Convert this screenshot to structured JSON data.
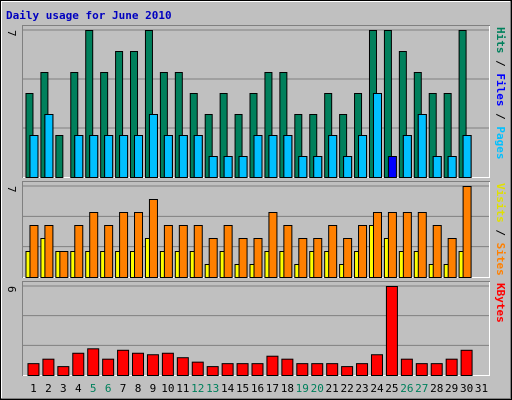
{
  "chart_data": [
    {
      "type": "bar",
      "title": "Daily usage for June 2010",
      "categories": [
        "1",
        "2",
        "3",
        "4",
        "5",
        "6",
        "7",
        "8",
        "9",
        "10",
        "11",
        "12",
        "13",
        "14",
        "15",
        "16",
        "17",
        "18",
        "19",
        "20",
        "21",
        "22",
        "23",
        "24",
        "25",
        "26",
        "27",
        "28",
        "29",
        "30",
        "31"
      ],
      "category_colors": [
        "#000000",
        "#000000",
        "#000000",
        "#000000",
        "#00805c",
        "#00805c",
        "#000000",
        "#000000",
        "#000000",
        "#000000",
        "#000000",
        "#00805c",
        "#00805c",
        "#000000",
        "#000000",
        "#000000",
        "#000000",
        "#000000",
        "#00805c",
        "#00805c",
        "#000000",
        "#000000",
        "#000000",
        "#000000",
        "#000000",
        "#00805c",
        "#00805c",
        "#000000",
        "#000000",
        "#000000",
        "#000000"
      ],
      "legend_separator": " / ",
      "ylim": [
        0,
        7
      ],
      "yticks": [
        7
      ],
      "series": [
        {
          "name": "Hits",
          "color": "#00805c",
          "values": [
            4,
            5,
            2,
            5,
            7,
            5,
            6,
            6,
            7,
            5,
            5,
            4,
            3,
            4,
            3,
            4,
            5,
            5,
            3,
            3,
            4,
            3,
            4,
            7,
            7,
            6,
            5,
            4,
            4,
            7,
            null
          ]
        },
        {
          "name": "Files",
          "color": "#0000ff",
          "values": [
            2,
            3,
            0,
            2,
            2,
            2,
            2,
            2,
            3,
            2,
            2,
            2,
            1,
            1,
            1,
            2,
            2,
            2,
            1,
            1,
            2,
            1,
            2,
            4,
            1,
            2,
            3,
            1,
            1,
            2,
            null
          ]
        },
        {
          "name": "Pages",
          "color": "#00c0ff",
          "values": [
            2,
            3,
            0,
            2,
            2,
            2,
            2,
            2,
            3,
            2,
            2,
            2,
            1,
            1,
            1,
            2,
            2,
            2,
            1,
            1,
            2,
            1,
            2,
            4,
            0,
            2,
            3,
            1,
            1,
            2,
            null
          ]
        }
      ]
    },
    {
      "type": "bar",
      "legend_separator": " / ",
      "ylim": [
        0,
        7
      ],
      "yticks": [
        7
      ],
      "series": [
        {
          "name": "Visits",
          "color": "#ffff00",
          "values": [
            2,
            3,
            2,
            2,
            2,
            2,
            2,
            2,
            3,
            2,
            2,
            2,
            1,
            2,
            1,
            1,
            2,
            2,
            1,
            2,
            2,
            1,
            2,
            4,
            3,
            2,
            2,
            1,
            1,
            2,
            null
          ]
        },
        {
          "name": "Sites",
          "color": "#ff8000",
          "values": [
            4,
            4,
            2,
            4,
            5,
            4,
            5,
            5,
            6,
            4,
            4,
            4,
            3,
            4,
            3,
            3,
            5,
            4,
            3,
            3,
            4,
            3,
            4,
            5,
            5,
            5,
            5,
            4,
            3,
            7,
            null
          ]
        }
      ]
    },
    {
      "type": "bar",
      "ylim": [
        0,
        6
      ],
      "yticks": [
        6
      ],
      "series": [
        {
          "name": "KBytes",
          "color": "#ff0000",
          "values": [
            0.8,
            1.1,
            0.6,
            1.5,
            1.8,
            1.1,
            1.7,
            1.5,
            1.4,
            1.5,
            1.2,
            0.9,
            0.6,
            0.8,
            0.8,
            0.8,
            1.3,
            1.1,
            0.8,
            0.8,
            0.8,
            0.6,
            0.8,
            1.4,
            6,
            1.1,
            0.8,
            0.8,
            1.1,
            1.7,
            null
          ]
        }
      ]
    }
  ]
}
